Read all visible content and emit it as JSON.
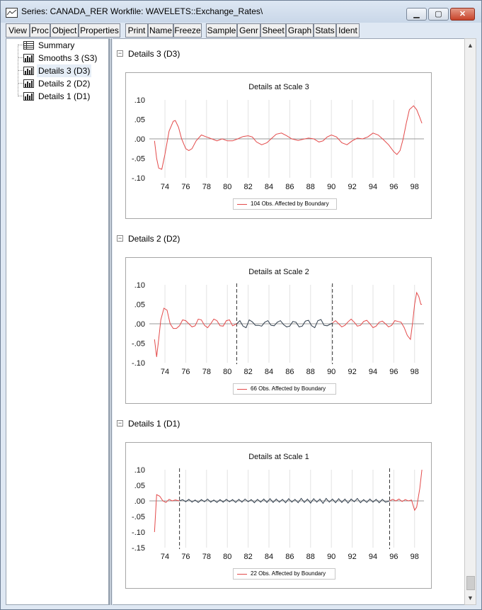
{
  "window": {
    "title": "Series: CANADA_RER   Workfile: WAVELETS::Exchange_Rates\\"
  },
  "toolbar": {
    "buttons": [
      "View",
      "Proc",
      "Object",
      "Properties",
      "Print",
      "Name",
      "Freeze",
      "Sample",
      "Genr",
      "Sheet",
      "Graph",
      "Stats",
      "Ident"
    ]
  },
  "tree": {
    "items": [
      {
        "label": "Summary",
        "icon": "table-icon"
      },
      {
        "label": "Smooths 3 (S3)",
        "icon": "chart-icon"
      },
      {
        "label": "Details 3 (D3)",
        "icon": "chart-icon",
        "selected": true
      },
      {
        "label": "Details 2 (D2)",
        "icon": "chart-icon"
      },
      {
        "label": "Details 1 (D1)",
        "icon": "chart-icon"
      }
    ]
  },
  "colors": {
    "boundary_series": "#e34a4a",
    "interior_series": "#2f3d4c",
    "gridline": "#e2e2e2",
    "zero_line": "#9a9a9a"
  },
  "sections": [
    {
      "header": "Details 3 (D3)",
      "collapse_symbol": "−"
    },
    {
      "header": "Details 2 (D2)",
      "collapse_symbol": "−"
    },
    {
      "header": "Details 1 (D1)",
      "collapse_symbol": "−"
    }
  ],
  "chart_data": [
    {
      "type": "line",
      "title": "Details at Scale 3",
      "xlabel": "",
      "ylabel": "",
      "xlim": [
        1972.5,
        1998.9
      ],
      "ylim": [
        -0.1,
        0.1
      ],
      "yticks": [
        ".10",
        ".05",
        ".00",
        "-.05",
        "-.10"
      ],
      "ytick_values": [
        0.1,
        0.05,
        0.0,
        -0.05,
        -0.1
      ],
      "xticks": [
        "74",
        "76",
        "78",
        "80",
        "82",
        "84",
        "86",
        "88",
        "90",
        "92",
        "94",
        "96",
        "98"
      ],
      "xtick_values": [
        1974,
        1976,
        1978,
        1980,
        1982,
        1984,
        1986,
        1988,
        1990,
        1992,
        1994,
        1996,
        1998
      ],
      "grid": true,
      "legend": "104 Obs. Affected by Boundary",
      "boundary_lines": [],
      "series": [
        {
          "name": "104 Obs. Affected by Boundary",
          "x": [
            1973.0,
            1973.2,
            1973.4,
            1973.7,
            1974.0,
            1974.4,
            1974.8,
            1975.0,
            1975.3,
            1975.6,
            1976.0,
            1976.3,
            1976.6,
            1977.0,
            1977.5,
            1978.0,
            1978.5,
            1979.0,
            1979.5,
            1980.0,
            1980.5,
            1981.0,
            1981.5,
            1982.0,
            1982.4,
            1982.8,
            1983.3,
            1983.8,
            1984.2,
            1984.7,
            1985.2,
            1985.7,
            1986.2,
            1986.8,
            1987.3,
            1987.8,
            1988.3,
            1988.8,
            1989.2,
            1989.6,
            1990.0,
            1990.5,
            1991.0,
            1991.5,
            1992.0,
            1992.5,
            1993.0,
            1993.5,
            1994.0,
            1994.5,
            1995.0,
            1995.5,
            1996.0,
            1996.3,
            1996.6,
            1996.9,
            1997.2,
            1997.5,
            1997.9,
            1998.2,
            1998.5,
            1998.7
          ],
          "values": [
            -0.005,
            -0.05,
            -0.075,
            -0.078,
            -0.04,
            0.02,
            0.045,
            0.047,
            0.03,
            0.0,
            -0.025,
            -0.03,
            -0.025,
            -0.005,
            0.01,
            0.005,
            0.0,
            -0.005,
            0.0,
            -0.005,
            -0.005,
            0.0,
            0.006,
            0.008,
            0.005,
            -0.008,
            -0.015,
            -0.01,
            0.0,
            0.012,
            0.015,
            0.008,
            0.0,
            -0.004,
            -0.001,
            0.002,
            0.0,
            -0.008,
            -0.005,
            0.005,
            0.01,
            0.005,
            -0.01,
            -0.015,
            -0.005,
            0.002,
            0.0,
            0.005,
            0.015,
            0.01,
            -0.002,
            -0.015,
            -0.033,
            -0.04,
            -0.03,
            0.0,
            0.04,
            0.075,
            0.085,
            0.075,
            0.055,
            0.04
          ],
          "color": "#e34a4a"
        }
      ]
    },
    {
      "type": "line",
      "title": "Details at Scale 2",
      "xlabel": "",
      "ylabel": "",
      "xlim": [
        1972.5,
        1998.9
      ],
      "ylim": [
        -0.1,
        0.1
      ],
      "yticks": [
        ".10",
        ".05",
        ".00",
        "-.05",
        "-.10"
      ],
      "ytick_values": [
        0.1,
        0.05,
        0.0,
        -0.05,
        -0.1
      ],
      "xticks": [
        "74",
        "76",
        "78",
        "80",
        "82",
        "84",
        "86",
        "88",
        "90",
        "92",
        "94",
        "96",
        "98"
      ],
      "xtick_values": [
        1974,
        1976,
        1978,
        1980,
        1982,
        1984,
        1986,
        1988,
        1990,
        1992,
        1994,
        1996,
        1998
      ],
      "grid": true,
      "legend": "66 Obs. Affected by Boundary",
      "boundary_lines": [
        1980.9,
        1990.1
      ],
      "series": [
        {
          "name": "66 Obs. Affected by Boundary",
          "x": [
            1973.0,
            1973.2,
            1973.4,
            1973.6,
            1973.9,
            1974.2,
            1974.5,
            1974.8,
            1975.1,
            1975.4,
            1975.7,
            1976.0,
            1976.3,
            1976.6,
            1976.9,
            1977.2,
            1977.5,
            1977.8,
            1978.1,
            1978.4,
            1978.7,
            1979.0,
            1979.3,
            1979.6,
            1979.9,
            1980.2,
            1980.5,
            1980.9
          ],
          "values": [
            -0.04,
            -0.085,
            -0.04,
            0.01,
            0.04,
            0.035,
            0.0,
            -0.012,
            -0.012,
            -0.005,
            0.01,
            0.008,
            0.0,
            -0.008,
            -0.005,
            0.012,
            0.01,
            -0.004,
            -0.01,
            0.0,
            0.012,
            0.008,
            -0.005,
            -0.006,
            0.008,
            0.01,
            -0.005,
            0.0
          ],
          "color": "#e34a4a"
        },
        {
          "name": "",
          "x": [
            1980.9,
            1981.2,
            1981.5,
            1981.8,
            1982.1,
            1982.4,
            1982.7,
            1983.0,
            1983.3,
            1983.6,
            1983.9,
            1984.2,
            1984.5,
            1984.8,
            1985.1,
            1985.4,
            1985.7,
            1986.0,
            1986.3,
            1986.6,
            1986.9,
            1987.2,
            1987.5,
            1987.8,
            1988.1,
            1988.4,
            1988.7,
            1989.0,
            1989.3,
            1989.6,
            1990.1
          ],
          "values": [
            0.0,
            0.008,
            -0.006,
            -0.01,
            0.01,
            0.005,
            -0.004,
            -0.004,
            -0.006,
            0.004,
            0.008,
            -0.004,
            -0.005,
            0.004,
            0.008,
            -0.002,
            -0.008,
            -0.006,
            0.006,
            0.004,
            -0.008,
            -0.006,
            0.007,
            0.009,
            -0.005,
            -0.01,
            0.008,
            0.011,
            -0.004,
            -0.005,
            0.002
          ],
          "color": "#2f3d4c"
        },
        {
          "name": "",
          "x": [
            1990.1,
            1990.4,
            1990.7,
            1991.0,
            1991.3,
            1991.6,
            1991.9,
            1992.2,
            1992.5,
            1992.8,
            1993.1,
            1993.4,
            1993.7,
            1994.0,
            1994.3,
            1994.6,
            1994.9,
            1995.2,
            1995.5,
            1995.8,
            1996.1,
            1996.4,
            1996.7,
            1997.0,
            1997.3,
            1997.6,
            1997.8,
            1998.0,
            1998.2,
            1998.4,
            1998.6,
            1998.7
          ],
          "values": [
            0.002,
            0.008,
            0.0,
            -0.008,
            -0.004,
            0.005,
            0.012,
            0.004,
            -0.006,
            -0.004,
            0.006,
            0.009,
            0.0,
            -0.01,
            -0.006,
            0.004,
            0.007,
            0.0,
            -0.008,
            -0.004,
            0.008,
            0.006,
            0.004,
            -0.01,
            -0.03,
            -0.04,
            0.0,
            0.05,
            0.08,
            0.07,
            0.05,
            0.05
          ],
          "color": "#e34a4a"
        }
      ]
    },
    {
      "type": "line",
      "title": "Details at Scale 1",
      "xlabel": "",
      "ylabel": "",
      "xlim": [
        1972.5,
        1998.9
      ],
      "ylim": [
        -0.15,
        0.1
      ],
      "yticks": [
        ".10",
        ".05",
        ".00",
        "-.05",
        "-.10",
        "-.15"
      ],
      "ytick_values": [
        0.1,
        0.05,
        0.0,
        -0.05,
        -0.1,
        -0.15
      ],
      "xticks": [
        "74",
        "76",
        "78",
        "80",
        "82",
        "84",
        "86",
        "88",
        "90",
        "92",
        "94",
        "96",
        "98"
      ],
      "xtick_values": [
        1974,
        1976,
        1978,
        1980,
        1982,
        1984,
        1986,
        1988,
        1990,
        1992,
        1994,
        1996,
        1998
      ],
      "grid": true,
      "legend": "22 Obs. Affected by Boundary",
      "boundary_lines": [
        1975.4,
        1995.6
      ],
      "series": [
        {
          "name": "22 Obs. Affected by Boundary",
          "x": [
            1973.0,
            1973.2,
            1973.5,
            1973.8,
            1974.1,
            1974.4,
            1974.7,
            1975.0,
            1975.4
          ],
          "values": [
            -0.1,
            0.02,
            0.015,
            0.0,
            -0.005,
            0.005,
            0.0,
            0.003,
            0.0
          ],
          "color": "#e34a4a"
        },
        {
          "name": "",
          "x": [
            1975.4,
            1975.7,
            1976.0,
            1976.3,
            1976.6,
            1976.9,
            1977.2,
            1977.5,
            1977.8,
            1978.1,
            1978.4,
            1978.7,
            1979.0,
            1979.3,
            1979.6,
            1979.9,
            1980.2,
            1980.5,
            1980.8,
            1981.1,
            1981.4,
            1981.7,
            1982.0,
            1982.3,
            1982.6,
            1982.9,
            1983.2,
            1983.5,
            1983.8,
            1984.1,
            1984.4,
            1984.7,
            1985.0,
            1985.3,
            1985.6,
            1985.9,
            1986.2,
            1986.5,
            1986.8,
            1987.1,
            1987.4,
            1987.7,
            1988.0,
            1988.3,
            1988.6,
            1988.9,
            1989.2,
            1989.5,
            1989.8,
            1990.1,
            1990.4,
            1990.7,
            1991.0,
            1991.3,
            1991.6,
            1991.9,
            1992.2,
            1992.5,
            1992.8,
            1993.1,
            1993.4,
            1993.7,
            1994.0,
            1994.3,
            1994.6,
            1994.9,
            1995.2,
            1995.6
          ],
          "values": [
            0.0,
            0.004,
            -0.003,
            0.005,
            -0.004,
            0.003,
            -0.005,
            0.004,
            -0.003,
            0.006,
            -0.004,
            0.003,
            -0.005,
            0.004,
            -0.004,
            0.005,
            -0.003,
            0.004,
            -0.005,
            0.005,
            -0.004,
            0.006,
            -0.003,
            0.004,
            -0.006,
            0.005,
            -0.004,
            0.006,
            -0.005,
            0.007,
            -0.005,
            0.006,
            -0.004,
            0.005,
            -0.006,
            0.007,
            -0.004,
            0.005,
            -0.006,
            0.008,
            -0.005,
            0.006,
            -0.007,
            0.007,
            -0.004,
            0.006,
            -0.008,
            0.008,
            -0.004,
            0.006,
            -0.006,
            0.007,
            -0.005,
            0.006,
            -0.007,
            0.006,
            -0.003,
            0.008,
            -0.006,
            0.004,
            -0.005,
            0.006,
            -0.004,
            0.005,
            -0.006,
            0.005,
            -0.004,
            0.0
          ],
          "color": "#2f3d4c"
        },
        {
          "name": "",
          "x": [
            1995.6,
            1995.9,
            1996.2,
            1996.5,
            1996.8,
            1997.1,
            1997.4,
            1997.7,
            1998.0,
            1998.2,
            1998.5,
            1998.7
          ],
          "values": [
            0.0,
            0.005,
            0.0,
            0.006,
            -0.002,
            0.004,
            0.0,
            0.003,
            -0.03,
            -0.02,
            0.04,
            0.1
          ],
          "color": "#e34a4a"
        }
      ]
    }
  ]
}
